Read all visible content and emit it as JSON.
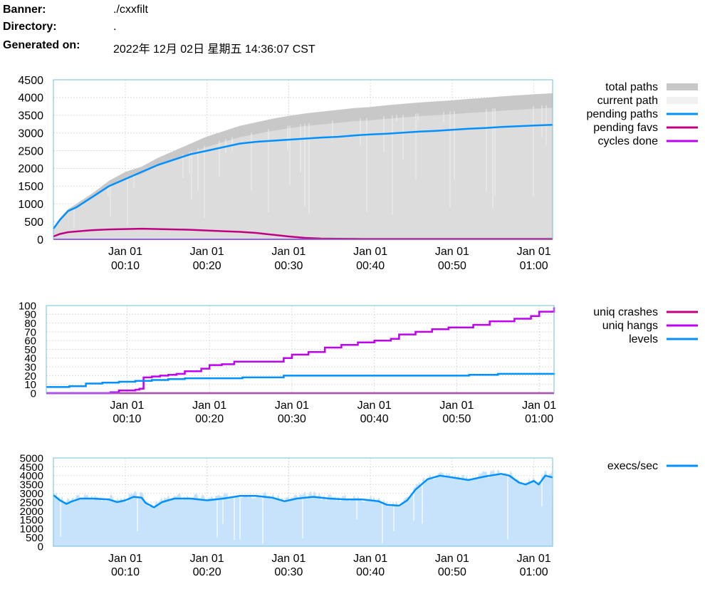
{
  "header": {
    "banner_label": "Banner:",
    "banner_value": "./cxxfilt",
    "directory_label": "Directory:",
    "directory_value": ".",
    "generated_label": "Generated on:",
    "generated_value": "2022年 12月 02日 星期五 14:36:07 CST"
  },
  "colors": {
    "total_paths": "#c8c8c8",
    "current_path": "#f0f0f0",
    "pending_paths": "#0090ff",
    "pending_favs": "#c00080",
    "cycles_done": "#c000f0",
    "uniq_crashes": "#c00080",
    "uniq_hangs": "#c000f0",
    "levels": "#0090ff",
    "execs_fill": "#c7e3fb",
    "execs_line": "#0090ff",
    "grid": "#dcdcdc",
    "border": "#70c0d8"
  },
  "chart_data": [
    {
      "type": "area",
      "x_range_minutes": [
        1.2,
        62.3
      ],
      "x_ticks": [
        {
          "minute": 10,
          "label": [
            "Jan 01",
            "00:10"
          ]
        },
        {
          "minute": 20,
          "label": [
            "Jan 01",
            "00:20"
          ]
        },
        {
          "minute": 30,
          "label": [
            "Jan 01",
            "00:30"
          ]
        },
        {
          "minute": 40,
          "label": [
            "Jan 01",
            "00:40"
          ]
        },
        {
          "minute": 50,
          "label": [
            "Jan 01",
            "00:50"
          ]
        },
        {
          "minute": 60,
          "label": [
            "Jan 01",
            "01:00"
          ]
        }
      ],
      "ylim": [
        0,
        4500
      ],
      "y_ticks": [
        0,
        500,
        1000,
        1500,
        2000,
        2500,
        3000,
        3500,
        4000,
        4500
      ],
      "legend": [
        "total paths",
        "current path",
        "pending paths",
        "pending favs",
        "cycles done"
      ],
      "legend_position": "right",
      "x": [
        1.2,
        2,
        3,
        4,
        6,
        8,
        10,
        12,
        14,
        16,
        18,
        20,
        22,
        24,
        26,
        28,
        30,
        32,
        34,
        36,
        38,
        40,
        42,
        44,
        46,
        48,
        50,
        52,
        54,
        56,
        58,
        60,
        62.3
      ],
      "series": [
        {
          "name": "total paths",
          "values": [
            300,
            600,
            850,
            1000,
            1300,
            1650,
            1900,
            2050,
            2300,
            2500,
            2700,
            2900,
            3050,
            3200,
            3300,
            3400,
            3480,
            3550,
            3600,
            3650,
            3700,
            3730,
            3780,
            3820,
            3860,
            3890,
            3920,
            3960,
            3990,
            4030,
            4060,
            4090,
            4120
          ]
        },
        {
          "name": "pending paths",
          "values": [
            300,
            550,
            800,
            900,
            1200,
            1500,
            1700,
            1900,
            2100,
            2250,
            2400,
            2500,
            2600,
            2700,
            2750,
            2780,
            2810,
            2840,
            2870,
            2890,
            2930,
            2960,
            2980,
            3010,
            3040,
            3060,
            3090,
            3120,
            3140,
            3170,
            3190,
            3210,
            3230
          ]
        },
        {
          "name": "pending favs",
          "values": [
            80,
            150,
            200,
            220,
            260,
            280,
            290,
            300,
            290,
            280,
            270,
            250,
            230,
            210,
            180,
            130,
            80,
            40,
            20,
            15,
            12,
            10,
            10,
            10,
            10,
            10,
            10,
            10,
            10,
            10,
            10,
            10,
            10
          ]
        },
        {
          "name": "cycles done",
          "values": [
            0,
            0,
            0,
            0,
            0,
            0,
            0,
            0,
            0,
            0,
            0,
            0,
            0,
            0,
            0,
            0,
            0,
            0,
            0,
            0,
            0,
            0,
            0,
            0,
            0,
            0,
            0,
            0,
            0,
            0,
            0,
            0,
            0
          ]
        }
      ]
    },
    {
      "type": "line",
      "x_range_minutes": [
        0.2,
        61.8
      ],
      "x_ticks": [
        {
          "minute": 10,
          "label": [
            "Jan 01",
            "00:10"
          ]
        },
        {
          "minute": 20,
          "label": [
            "Jan 01",
            "00:20"
          ]
        },
        {
          "minute": 30,
          "label": [
            "Jan 01",
            "00:30"
          ]
        },
        {
          "minute": 40,
          "label": [
            "Jan 01",
            "00:40"
          ]
        },
        {
          "minute": 50,
          "label": [
            "Jan 01",
            "00:50"
          ]
        },
        {
          "minute": 60,
          "label": [
            "Jan 01",
            "01:00"
          ]
        }
      ],
      "ylim": [
        0,
        100
      ],
      "y_ticks": [
        0,
        10,
        20,
        30,
        40,
        50,
        60,
        70,
        80,
        90,
        100
      ],
      "legend": [
        "uniq crashes",
        "uniq hangs",
        "levels"
      ],
      "legend_position": "right",
      "series": [
        {
          "name": "uniq crashes",
          "points": [
            [
              0.2,
              0
            ],
            [
              61.8,
              0
            ]
          ]
        },
        {
          "name": "uniq hangs",
          "points": [
            [
              0.2,
              0
            ],
            [
              7,
              0
            ],
            [
              8,
              1
            ],
            [
              9,
              3
            ],
            [
              11,
              4
            ],
            [
              11.5,
              5
            ],
            [
              12,
              18
            ],
            [
              13,
              19
            ],
            [
              14,
              20
            ],
            [
              15,
              21
            ],
            [
              16,
              22
            ],
            [
              17,
              25
            ],
            [
              19,
              28
            ],
            [
              20,
              32
            ],
            [
              21.5,
              33
            ],
            [
              23,
              36
            ],
            [
              28,
              36
            ],
            [
              29,
              40
            ],
            [
              30,
              44
            ],
            [
              32,
              47
            ],
            [
              34,
              52
            ],
            [
              36,
              55
            ],
            [
              38,
              58
            ],
            [
              40,
              60
            ],
            [
              42,
              62
            ],
            [
              43,
              67
            ],
            [
              45,
              70
            ],
            [
              47,
              73
            ],
            [
              49,
              75
            ],
            [
              52,
              78
            ],
            [
              54,
              82
            ],
            [
              57,
              85
            ],
            [
              59,
              88
            ],
            [
              60,
              93
            ],
            [
              61.8,
              98
            ]
          ]
        },
        {
          "name": "levels",
          "points": [
            [
              0.2,
              7
            ],
            [
              3,
              8
            ],
            [
              5,
              11
            ],
            [
              7,
              12
            ],
            [
              9,
              13
            ],
            [
              11,
              14
            ],
            [
              13,
              15
            ],
            [
              15,
              16
            ],
            [
              17,
              17
            ],
            [
              24,
              18
            ],
            [
              29,
              20
            ],
            [
              40,
              20
            ],
            [
              51,
              20
            ],
            [
              51.5,
              21
            ],
            [
              55,
              22
            ],
            [
              61.8,
              23
            ]
          ]
        }
      ]
    },
    {
      "type": "area",
      "x_range_minutes": [
        1.2,
        62.3
      ],
      "x_ticks": [
        {
          "minute": 10,
          "label": [
            "Jan 01",
            "00:10"
          ]
        },
        {
          "minute": 20,
          "label": [
            "Jan 01",
            "00:20"
          ]
        },
        {
          "minute": 30,
          "label": [
            "Jan 01",
            "00:30"
          ]
        },
        {
          "minute": 40,
          "label": [
            "Jan 01",
            "00:40"
          ]
        },
        {
          "minute": 50,
          "label": [
            "Jan 01",
            "00:50"
          ]
        },
        {
          "minute": 60,
          "label": [
            "Jan 01",
            "01:00"
          ]
        }
      ],
      "ylim": [
        0,
        5000
      ],
      "y_ticks": [
        0,
        500,
        1000,
        1500,
        2000,
        2500,
        3000,
        3500,
        4000,
        4500,
        5000
      ],
      "legend": [
        "execs/sec"
      ],
      "legend_position": "right",
      "series": [
        {
          "name": "execs/sec",
          "points": [
            [
              1.2,
              2900
            ],
            [
              2,
              2600
            ],
            [
              2.8,
              2400
            ],
            [
              3.5,
              2550
            ],
            [
              4.5,
              2700
            ],
            [
              6,
              2700
            ],
            [
              8,
              2650
            ],
            [
              9,
              2500
            ],
            [
              10,
              2600
            ],
            [
              11,
              2800
            ],
            [
              12,
              2750
            ],
            [
              12.5,
              2450
            ],
            [
              13.5,
              2200
            ],
            [
              14.5,
              2500
            ],
            [
              16,
              2700
            ],
            [
              18,
              2700
            ],
            [
              20,
              2600
            ],
            [
              22,
              2700
            ],
            [
              24,
              2850
            ],
            [
              26,
              2850
            ],
            [
              28,
              2750
            ],
            [
              29.5,
              2550
            ],
            [
              31,
              2700
            ],
            [
              33,
              2800
            ],
            [
              35,
              2700
            ],
            [
              37,
              2650
            ],
            [
              39,
              2650
            ],
            [
              41,
              2550
            ],
            [
              42,
              2350
            ],
            [
              43.5,
              2300
            ],
            [
              44.5,
              2600
            ],
            [
              45.5,
              3200
            ],
            [
              47,
              3800
            ],
            [
              48.5,
              4000
            ],
            [
              50,
              3900
            ],
            [
              52,
              3750
            ],
            [
              54,
              3950
            ],
            [
              56,
              4100
            ],
            [
              57,
              4000
            ],
            [
              58.2,
              3600
            ],
            [
              59,
              3500
            ],
            [
              60,
              3700
            ],
            [
              60.6,
              3500
            ],
            [
              61.4,
              4000
            ],
            [
              62.3,
              3900
            ]
          ]
        }
      ]
    }
  ]
}
